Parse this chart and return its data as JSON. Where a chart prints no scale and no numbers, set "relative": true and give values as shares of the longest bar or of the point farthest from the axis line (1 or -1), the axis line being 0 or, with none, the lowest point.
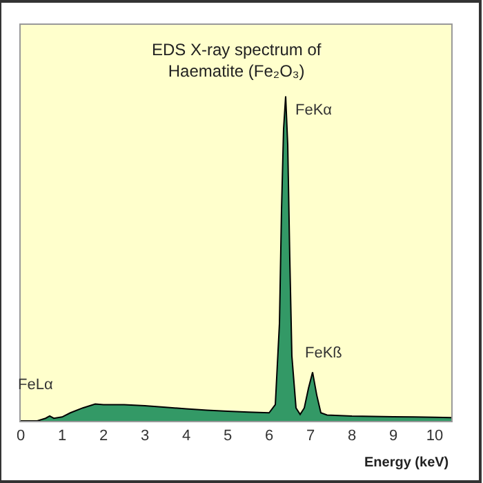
{
  "chart_data": {
    "type": "area",
    "title": "EDS X-ray spectrum of\nHaematite (Fe₂O₃)",
    "xlabel": "Energy (keV)",
    "relative": true,
    "x": [
      0,
      0.4,
      0.6,
      0.7,
      0.8,
      1.0,
      1.2,
      1.5,
      1.8,
      2.0,
      2.5,
      3.0,
      3.5,
      4.0,
      4.5,
      5.0,
      5.5,
      6.0,
      6.15,
      6.25,
      6.3,
      6.35,
      6.4,
      6.45,
      6.5,
      6.55,
      6.65,
      6.75,
      6.85,
      6.95,
      7.05,
      7.15,
      7.25,
      7.4,
      8,
      8.5,
      9,
      9.5,
      10,
      10.4
    ],
    "series": [
      {
        "color": "#339966",
        "values": [
          0,
          0,
          0.008,
          0.015,
          0.008,
          0.012,
          0.025,
          0.04,
          0.052,
          0.05,
          0.05,
          0.047,
          0.042,
          0.037,
          0.033,
          0.03,
          0.027,
          0.025,
          0.05,
          0.3,
          0.65,
          0.9,
          1,
          0.85,
          0.5,
          0.2,
          0.04,
          0.02,
          0.04,
          0.1,
          0.15,
          0.08,
          0.025,
          0.018,
          0.015,
          0.014,
          0.013,
          0.012,
          0.011,
          0.01
        ]
      }
    ],
    "xlim": [
      0,
      10.4
    ],
    "xticks": [
      0,
      1,
      2,
      3,
      4,
      5,
      6,
      7,
      8,
      9,
      10
    ],
    "grid": false,
    "annotations": [
      {
        "text": "FeLα",
        "x": 0.7,
        "y": 0.015
      },
      {
        "text": "FeKα",
        "x": 6.4,
        "y": 1
      },
      {
        "text": "FeKß",
        "x": 7.05,
        "y": 0.15
      }
    ]
  }
}
